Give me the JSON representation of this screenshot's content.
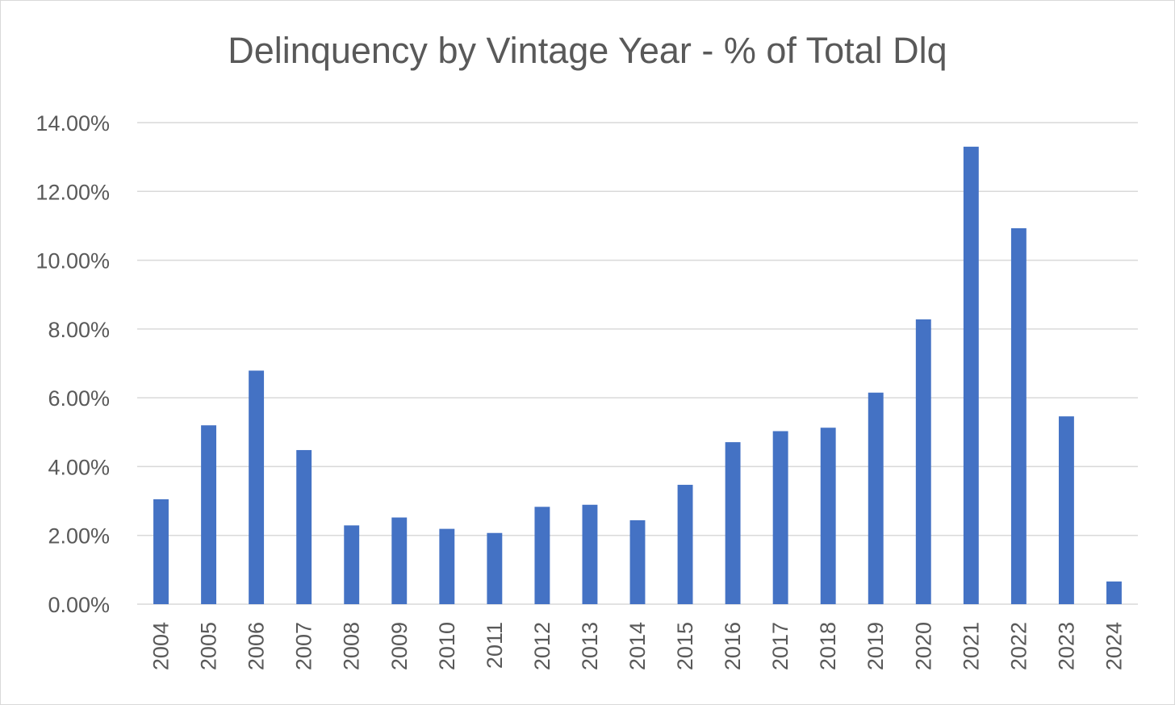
{
  "chart_data": {
    "type": "bar",
    "title": "Delinquency by Vintage Year - % of Total Dlq",
    "xlabel": "",
    "ylabel": "",
    "categories": [
      "2004",
      "2005",
      "2006",
      "2007",
      "2008",
      "2009",
      "2010",
      "2011",
      "2012",
      "2013",
      "2014",
      "2015",
      "2016",
      "2017",
      "2018",
      "2019",
      "2020",
      "2021",
      "2022",
      "2023",
      "2024"
    ],
    "series": [
      {
        "name": "% of Total Dlq",
        "values": [
          3.05,
          5.2,
          6.79,
          4.48,
          2.29,
          2.52,
          2.19,
          2.07,
          2.83,
          2.89,
          2.44,
          3.47,
          4.71,
          5.03,
          5.13,
          6.15,
          8.28,
          13.3,
          10.93,
          5.46,
          0.66
        ]
      }
    ],
    "ylim": [
      0,
      14
    ],
    "yticks": [
      "0.00%",
      "2.00%",
      "4.00%",
      "6.00%",
      "8.00%",
      "10.00%",
      "12.00%",
      "14.00%"
    ],
    "grid": true,
    "legend": "none",
    "colors": {
      "bar": "#4472C4",
      "grid": "#d9d9d9",
      "text": "#595959"
    }
  }
}
